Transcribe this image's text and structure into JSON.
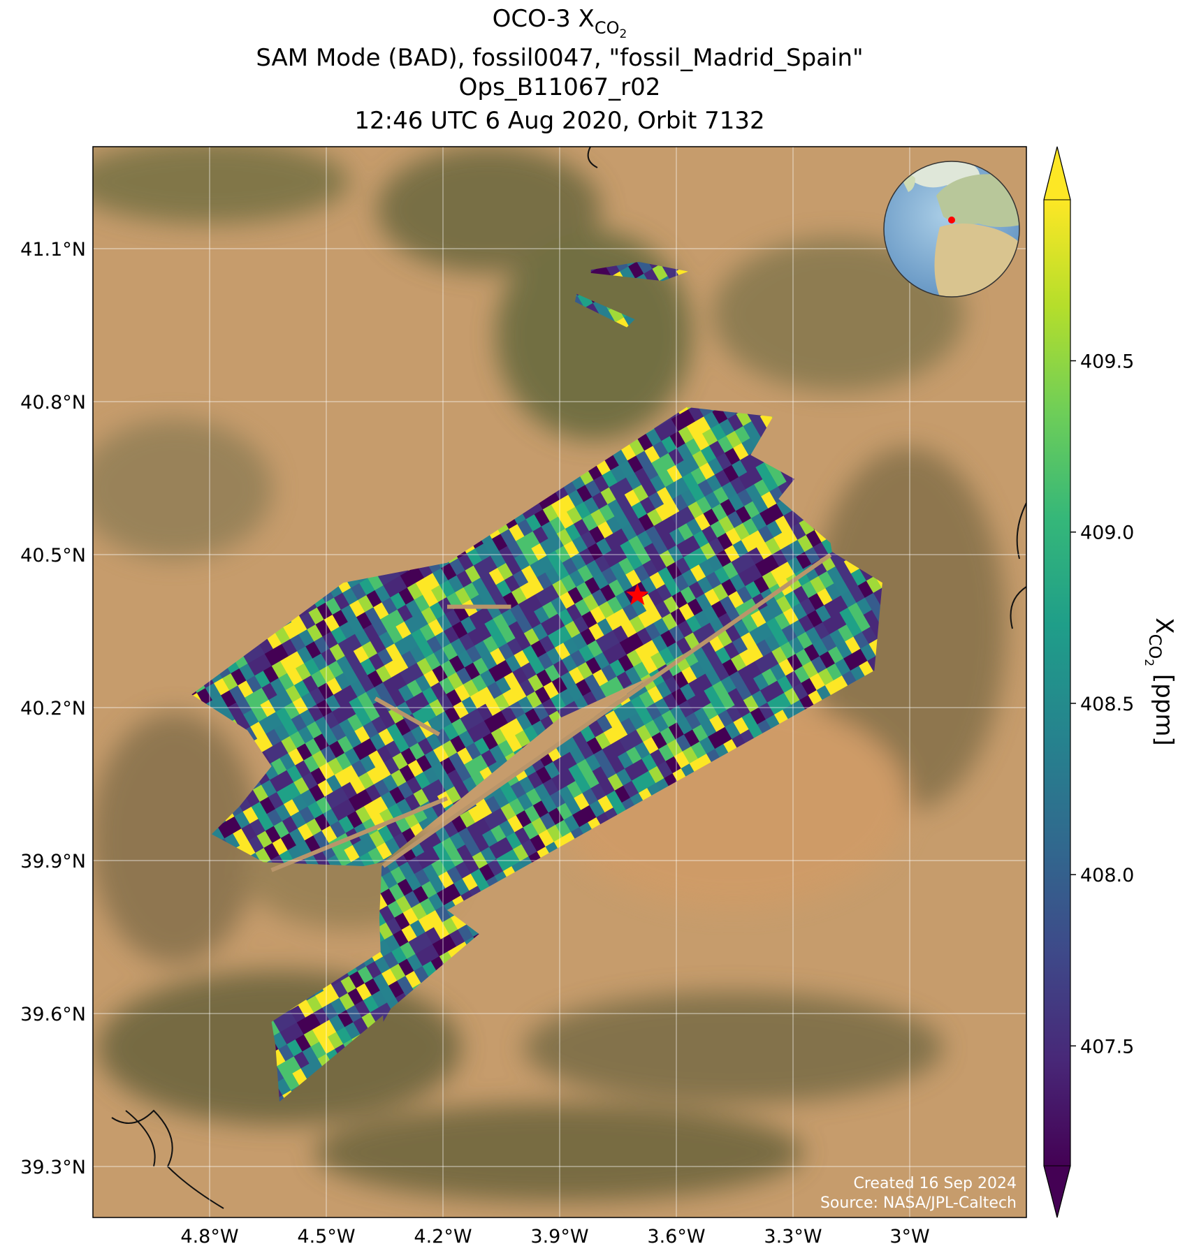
{
  "map": {
    "title": {
      "line1": "OCO-3 X",
      "line1_sub": "CO",
      "line1_sub2": "2",
      "line2": "SAM Mode (BAD), fossil0047, \"fossil_Madrid_Spain\"",
      "line3": "Ops_B11067_r02",
      "line4": "12:46 UTC 6 Aug 2020, Orbit 7132"
    },
    "xlim": [
      -5.1,
      -2.7
    ],
    "xticks": [
      {
        "value": -4.8,
        "label": "4.8°W"
      },
      {
        "value": -4.5,
        "label": "4.5°W"
      },
      {
        "value": -4.2,
        "label": "4.2°W"
      },
      {
        "value": -3.9,
        "label": "3.9°W"
      },
      {
        "value": -3.6,
        "label": "3.6°W"
      },
      {
        "value": -3.3,
        "label": "3.3°W"
      },
      {
        "value": -3.0,
        "label": "3°W"
      }
    ],
    "ylim": [
      39.2,
      41.3
    ],
    "yticks": [
      {
        "value": 39.3,
        "label": "39.3°N"
      },
      {
        "value": 39.6,
        "label": "39.6°N"
      },
      {
        "value": 39.9,
        "label": "39.9°N"
      },
      {
        "value": 40.2,
        "label": "40.2°N"
      },
      {
        "value": 40.5,
        "label": "40.5°N"
      },
      {
        "value": 40.8,
        "label": "40.8°N"
      },
      {
        "value": 41.1,
        "label": "41.1°N"
      }
    ],
    "grid": true,
    "site": {
      "lon": -3.7,
      "lat": 40.42,
      "color": "#ff0000"
    },
    "colorbar": {
      "label": "X",
      "label_sub": "CO",
      "label_sub2": "2",
      "label_unit": " [ppm]",
      "lim": [
        407.15,
        409.97
      ],
      "ticks": [
        407.5,
        {
          "value": 408.0,
          "label": "408.0"
        },
        408.5,
        {
          "value": 409.0,
          "label": "409.0"
        },
        409.5
      ]
    },
    "credits": [
      "Created 16 Sep 2024",
      "Source: NASA/JPL-Caltech"
    ]
  }
}
